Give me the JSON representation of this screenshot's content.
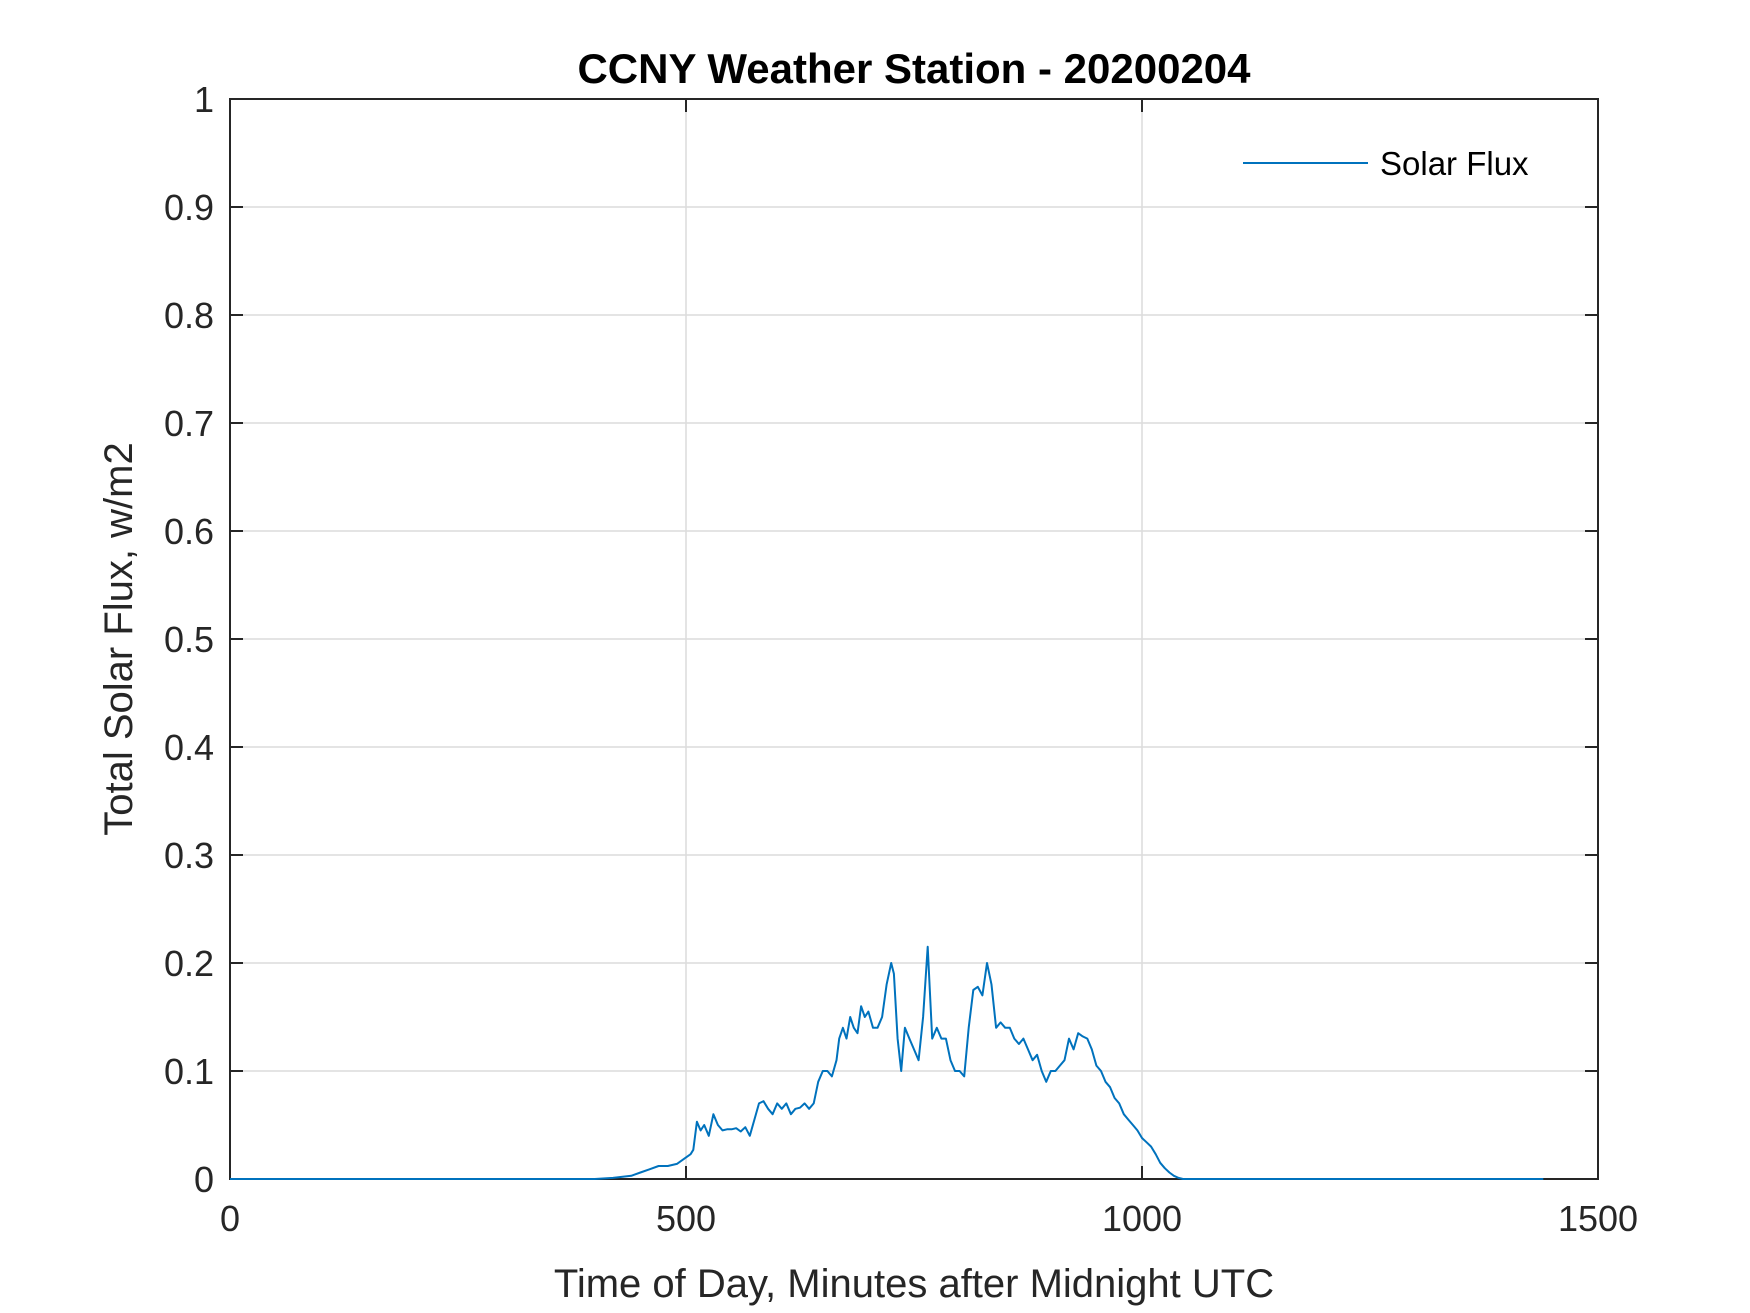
{
  "chart_data": {
    "type": "line",
    "title": "CCNY Weather Station - 20200204",
    "xlabel": "Time of Day, Minutes after Midnight UTC",
    "ylabel": "Total Solar Flux, w/m2",
    "xlim": [
      0,
      1500
    ],
    "ylim": [
      0,
      1
    ],
    "xticks": [
      0,
      500,
      1000,
      1500
    ],
    "xtick_labels": [
      "0",
      "500",
      "1000",
      "1500"
    ],
    "yticks": [
      0,
      0.1,
      0.2,
      0.3,
      0.4,
      0.5,
      0.6,
      0.7,
      0.8,
      0.9,
      1
    ],
    "ytick_labels": [
      "0",
      "0.1",
      "0.2",
      "0.3",
      "0.4",
      "0.5",
      "0.6",
      "0.7",
      "0.8",
      "0.9",
      "1"
    ],
    "grid": true,
    "legend": {
      "position": "top-right",
      "entries": [
        "Solar Flux"
      ]
    },
    "series": [
      {
        "name": "Solar Flux",
        "color": "#0072BD",
        "x": [
          0,
          100,
          200,
          300,
          400,
          420,
          440,
          450,
          460,
          470,
          480,
          490,
          500,
          505,
          508,
          512,
          516,
          520,
          525,
          530,
          535,
          540,
          545,
          550,
          555,
          560,
          565,
          570,
          575,
          580,
          585,
          590,
          595,
          600,
          605,
          610,
          615,
          620,
          625,
          630,
          635,
          640,
          645,
          650,
          655,
          660,
          665,
          668,
          672,
          676,
          680,
          684,
          688,
          692,
          696,
          700,
          705,
          710,
          715,
          720,
          725,
          728,
          732,
          736,
          740,
          745,
          750,
          755,
          760,
          765,
          770,
          775,
          780,
          785,
          790,
          795,
          800,
          805,
          810,
          815,
          820,
          825,
          830,
          835,
          840,
          845,
          850,
          855,
          860,
          865,
          870,
          875,
          880,
          885,
          890,
          895,
          900,
          905,
          910,
          915,
          920,
          925,
          930,
          935,
          940,
          945,
          950,
          955,
          960,
          965,
          970,
          975,
          980,
          985,
          990,
          995,
          1000,
          1005,
          1010,
          1015,
          1020,
          1025,
          1030,
          1035,
          1040,
          1045,
          1050,
          1100,
          1200,
          1300,
          1400,
          1440
        ],
        "y": [
          0,
          0,
          0,
          0,
          0,
          0.001,
          0.003,
          0.006,
          0.009,
          0.012,
          0.012,
          0.014,
          0.02,
          0.023,
          0.027,
          0.053,
          0.045,
          0.05,
          0.04,
          0.06,
          0.05,
          0.045,
          0.046,
          0.046,
          0.047,
          0.044,
          0.048,
          0.04,
          0.055,
          0.07,
          0.072,
          0.065,
          0.06,
          0.07,
          0.065,
          0.07,
          0.06,
          0.065,
          0.066,
          0.07,
          0.065,
          0.07,
          0.09,
          0.1,
          0.1,
          0.095,
          0.11,
          0.13,
          0.14,
          0.13,
          0.15,
          0.14,
          0.135,
          0.16,
          0.15,
          0.155,
          0.14,
          0.14,
          0.15,
          0.18,
          0.2,
          0.19,
          0.13,
          0.1,
          0.14,
          0.13,
          0.12,
          0.11,
          0.15,
          0.215,
          0.13,
          0.14,
          0.13,
          0.13,
          0.11,
          0.1,
          0.1,
          0.095,
          0.14,
          0.175,
          0.178,
          0.17,
          0.2,
          0.18,
          0.14,
          0.145,
          0.14,
          0.14,
          0.13,
          0.125,
          0.13,
          0.12,
          0.11,
          0.115,
          0.1,
          0.09,
          0.1,
          0.1,
          0.105,
          0.11,
          0.13,
          0.12,
          0.135,
          0.132,
          0.13,
          0.12,
          0.105,
          0.1,
          0.09,
          0.085,
          0.075,
          0.07,
          0.06,
          0.055,
          0.05,
          0.045,
          0.038,
          0.034,
          0.03,
          0.023,
          0.015,
          0.01,
          0.006,
          0.003,
          0.001,
          0,
          0,
          0,
          0,
          0,
          0,
          0
        ]
      }
    ]
  }
}
